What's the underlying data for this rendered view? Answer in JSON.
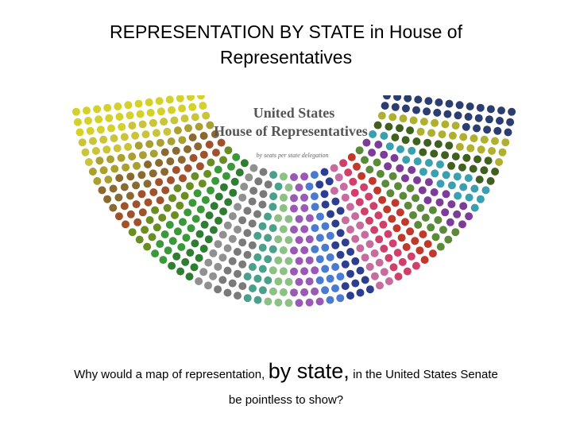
{
  "header": {
    "title": "REPRESENTATION BY STATE in House of Representatives"
  },
  "image": {
    "heading_line1": "United States",
    "heading_line2": "House of Representatives",
    "caption": "by seats per state delegation"
  },
  "question": {
    "part1": "Why would a map of representation,",
    "part2": "by state,",
    "part3": "in the United States Senate",
    "part4": "be pointless to show?"
  }
}
